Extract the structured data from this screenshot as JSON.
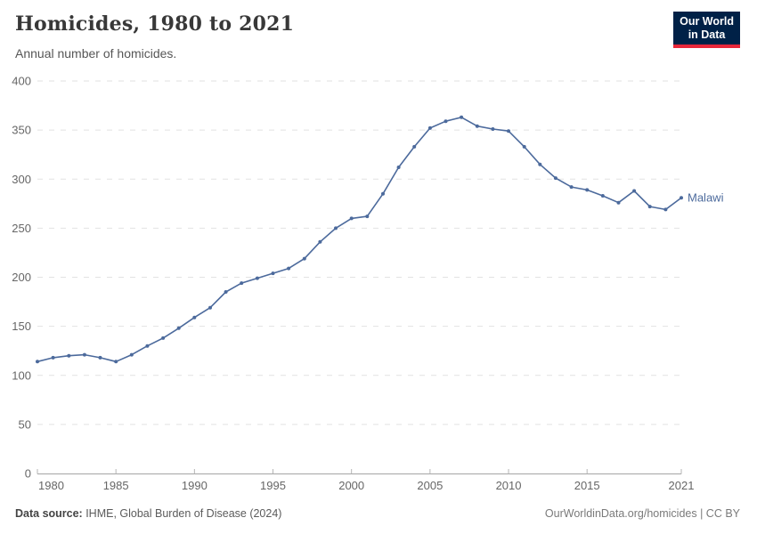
{
  "header": {
    "title": "Homicides, 1980 to 2021",
    "subtitle": "Annual number of homicides.",
    "logo": {
      "line1": "Our World",
      "line2": "in Data",
      "bg_color": "#002147",
      "accent_color": "#E8273A"
    }
  },
  "chart_data": {
    "type": "line",
    "title": "Homicides, 1980 to 2021",
    "subtitle": "Annual number of homicides.",
    "xlabel": "",
    "ylabel": "",
    "ylim": [
      0,
      400
    ],
    "yticks": [
      0,
      50,
      100,
      150,
      200,
      250,
      300,
      350,
      400
    ],
    "xticks": [
      1980,
      1985,
      1990,
      1995,
      2000,
      2005,
      2010,
      2015,
      2021
    ],
    "xlim": [
      1980,
      2021
    ],
    "grid": "horizontal-dashed",
    "legend": "end-of-line-label",
    "series": [
      {
        "name": "Malawi",
        "color": "#4C6A9C",
        "x": [
          1980,
          1981,
          1982,
          1983,
          1984,
          1985,
          1986,
          1987,
          1988,
          1989,
          1990,
          1991,
          1992,
          1993,
          1994,
          1995,
          1996,
          1997,
          1998,
          1999,
          2000,
          2001,
          2002,
          2003,
          2004,
          2005,
          2006,
          2007,
          2008,
          2009,
          2010,
          2011,
          2012,
          2013,
          2014,
          2015,
          2016,
          2017,
          2018,
          2019,
          2020,
          2021
        ],
        "values": [
          114,
          118,
          120,
          121,
          118,
          114,
          121,
          130,
          138,
          148,
          159,
          169,
          185,
          194,
          199,
          204,
          209,
          219,
          236,
          250,
          260,
          262,
          285,
          312,
          333,
          352,
          359,
          363,
          354,
          351,
          349,
          333,
          315,
          301,
          292,
          289,
          283,
          276,
          288,
          272,
          269,
          281
        ]
      }
    ]
  },
  "footer": {
    "source_label": "Data source:",
    "source_value": " IHME, Global Burden of Disease (2024)",
    "credit": "OurWorldinData.org/homicides | CC BY"
  }
}
